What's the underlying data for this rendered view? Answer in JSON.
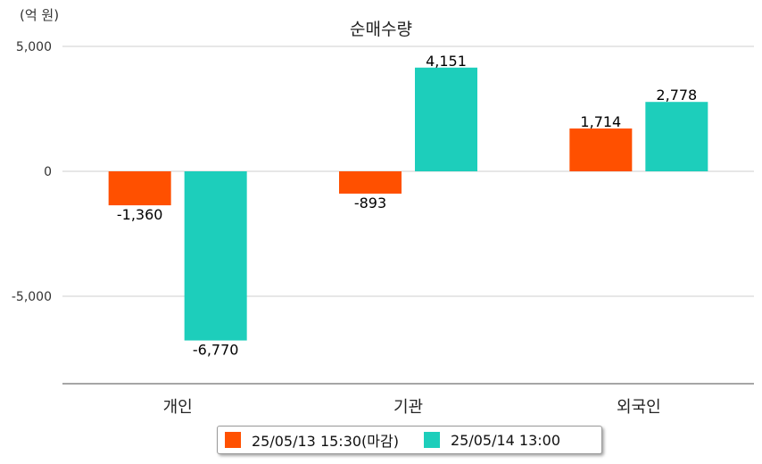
{
  "chart_data": {
    "type": "bar",
    "title": "순매수량",
    "unit_label": "(억 원)",
    "categories": [
      "개인",
      "기관",
      "외국인"
    ],
    "series": [
      {
        "name": "25/05/13 15:30(마감)",
        "color": "#ff5000",
        "values": [
          -1360,
          -893,
          1714
        ],
        "labels": [
          "-1,360",
          "-893",
          "1,714"
        ]
      },
      {
        "name": "25/05/14 13:00",
        "color": "#1dcebb",
        "values": [
          -6770,
          4151,
          2778
        ],
        "labels": [
          "-6,770",
          "4,151",
          "2,778"
        ]
      }
    ],
    "yticks": [
      5000,
      0,
      -5000
    ],
    "ytick_labels": [
      "5,000",
      "0",
      "-5,000"
    ],
    "ylim": [
      -8500,
      5000
    ],
    "grid": true,
    "legend_position": "bottom"
  }
}
